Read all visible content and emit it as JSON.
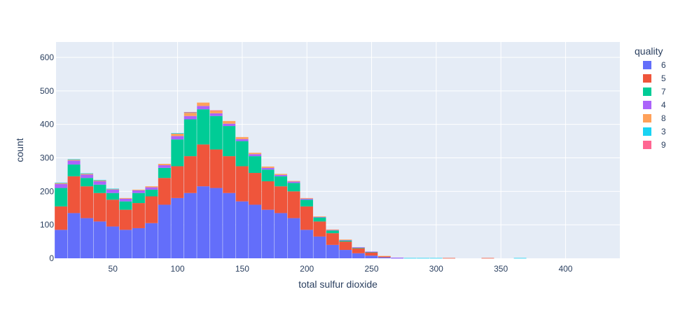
{
  "chart_data": {
    "type": "bar",
    "stacked": true,
    "histogram": true,
    "xlabel": "total sulfur dioxide",
    "ylabel": "count",
    "xlim": [
      6,
      442
    ],
    "ylim": [
      0,
      646
    ],
    "x_ticks": [
      50,
      100,
      150,
      200,
      250,
      300,
      350,
      400
    ],
    "y_ticks": [
      0,
      100,
      200,
      300,
      400,
      500,
      600
    ],
    "grid": true,
    "legend": {
      "title": "quality",
      "position": "right"
    },
    "colors": {
      "6": "#636efa",
      "5": "#EF553B",
      "7": "#00cc96",
      "4": "#ab63fa",
      "8": "#FFA15A",
      "3": "#19d3f3",
      "9": "#FF6692",
      "plot_bg": "#E5ECF6",
      "grid": "#ffffff",
      "text": "#2a3f5f"
    },
    "categories": [
      10,
      20,
      30,
      40,
      50,
      60,
      70,
      80,
      90,
      100,
      110,
      120,
      130,
      140,
      150,
      160,
      170,
      180,
      190,
      200,
      210,
      220,
      230,
      240,
      250,
      260,
      270,
      280,
      290,
      300,
      310,
      340,
      365
    ],
    "series": [
      {
        "name": "6",
        "values": [
          85,
          135,
          120,
          110,
          95,
          85,
          90,
          105,
          160,
          180,
          195,
          215,
          210,
          195,
          170,
          160,
          145,
          135,
          120,
          85,
          65,
          40,
          25,
          15,
          8,
          3,
          1,
          0,
          0,
          0,
          0,
          0,
          0
        ]
      },
      {
        "name": "5",
        "values": [
          70,
          110,
          95,
          85,
          80,
          60,
          75,
          80,
          80,
          95,
          110,
          125,
          115,
          110,
          105,
          95,
          85,
          80,
          80,
          70,
          45,
          35,
          25,
          15,
          10,
          3,
          0,
          0,
          0,
          0,
          1,
          1,
          0
        ]
      },
      {
        "name": "7",
        "values": [
          55,
          35,
          25,
          25,
          20,
          25,
          30,
          20,
          30,
          80,
          110,
          105,
          100,
          90,
          75,
          50,
          35,
          30,
          25,
          20,
          12,
          8,
          3,
          2,
          1,
          0,
          0,
          0,
          0,
          0,
          0,
          0,
          0
        ]
      },
      {
        "name": "4",
        "values": [
          12,
          12,
          10,
          10,
          10,
          8,
          8,
          7,
          8,
          10,
          10,
          10,
          8,
          7,
          6,
          6,
          5,
          4,
          4,
          3,
          2,
          2,
          2,
          1,
          1,
          0,
          1,
          0,
          0,
          0,
          0,
          0,
          0
        ]
      },
      {
        "name": "8",
        "values": [
          3,
          3,
          3,
          3,
          2,
          2,
          2,
          3,
          4,
          8,
          10,
          10,
          8,
          8,
          6,
          4,
          4,
          3,
          2,
          2,
          1,
          1,
          1,
          0,
          0,
          1,
          0,
          0,
          0,
          0,
          0,
          0,
          0
        ]
      },
      {
        "name": "3",
        "values": [
          1,
          1,
          1,
          1,
          1,
          0,
          0,
          0,
          0,
          1,
          1,
          0,
          0,
          0,
          0,
          0,
          0,
          0,
          0,
          0,
          0,
          0,
          0,
          0,
          0,
          0,
          0,
          1,
          1,
          1,
          0,
          0,
          1
        ]
      },
      {
        "name": "9",
        "values": [
          0,
          0,
          0,
          0,
          0,
          0,
          0,
          0,
          0,
          0,
          1,
          0,
          1,
          0,
          0,
          0,
          0,
          0,
          0,
          0,
          0,
          0,
          0,
          0,
          0,
          0,
          0,
          0,
          0,
          0,
          0,
          0,
          0
        ]
      }
    ]
  }
}
